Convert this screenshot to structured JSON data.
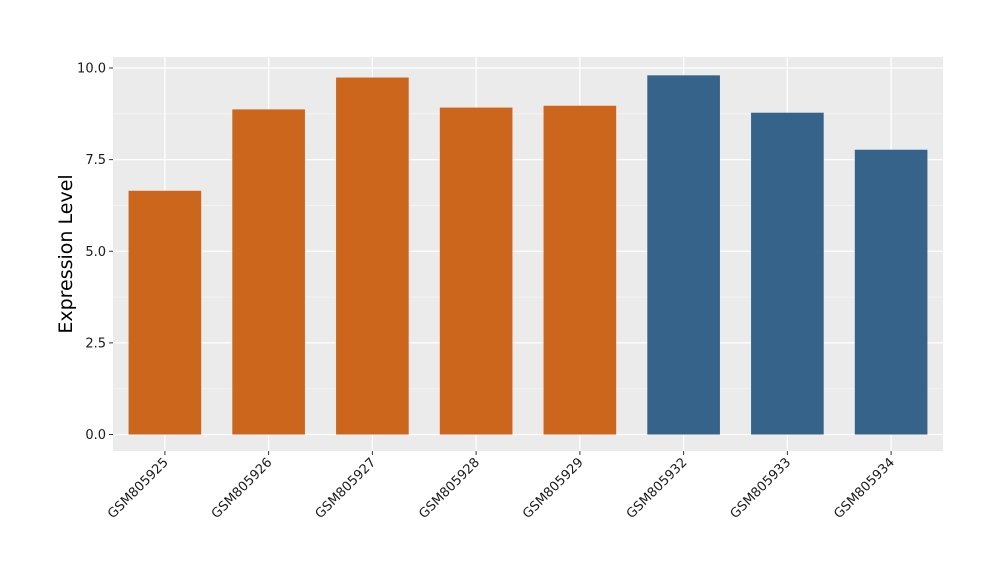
{
  "chart_data": {
    "type": "bar",
    "title": "",
    "xlabel": "",
    "ylabel": "Expression Level",
    "categories": [
      "GSM805925",
      "GSM805926",
      "GSM805927",
      "GSM805928",
      "GSM805929",
      "GSM805932",
      "GSM805933",
      "GSM805934"
    ],
    "values": [
      6.65,
      8.87,
      9.74,
      8.92,
      8.97,
      9.8,
      8.78,
      7.77
    ],
    "bar_colors": [
      "#cc661d",
      "#cc661d",
      "#cc661d",
      "#cc661d",
      "#cc661d",
      "#356389",
      "#356389",
      "#356389"
    ],
    "ylim": [
      -0.45,
      10.3
    ],
    "yticks": [
      0.0,
      2.5,
      5.0,
      7.5,
      10.0
    ],
    "ytick_labels": [
      "0.0",
      "2.5",
      "5.0",
      "7.5",
      "10.0"
    ],
    "grid": true,
    "legend": "none"
  }
}
